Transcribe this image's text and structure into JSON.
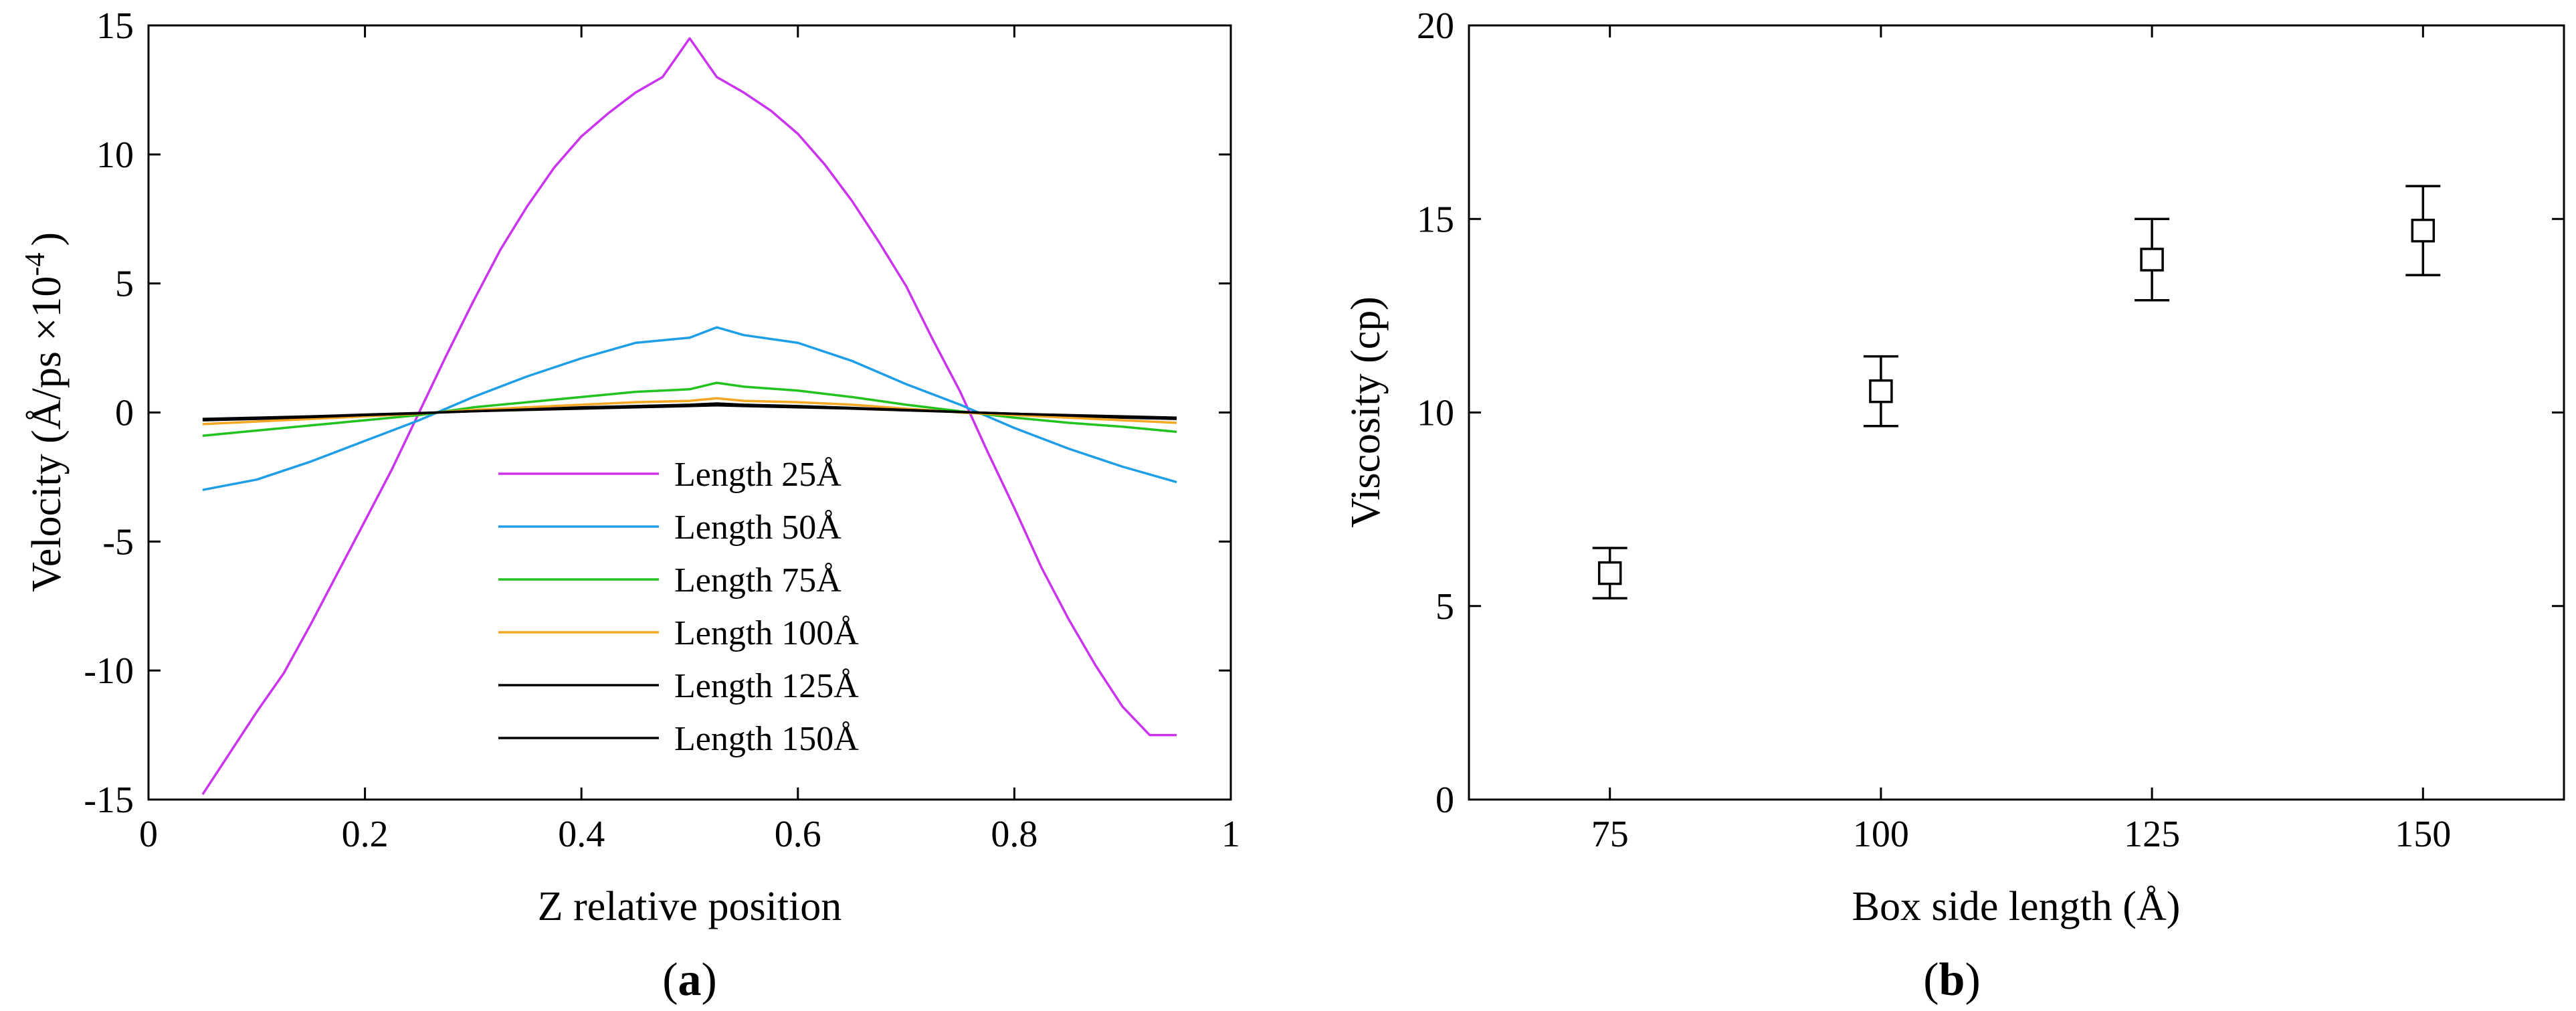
{
  "figure": {
    "panel_a_label": {
      "open": "(",
      "letter": "a",
      "close": ")"
    },
    "panel_b_label": {
      "open": "(",
      "letter": "b",
      "close": ")"
    }
  },
  "chart_data": [
    {
      "type": "line",
      "xlabel": "Z relative position",
      "ylabel": "Velocity (Å/ps ×10",
      "ylabel_exponent": "-4",
      "ylabel_close": ")",
      "xlim": [
        0,
        1
      ],
      "ylim": [
        -15,
        15
      ],
      "xticks": [
        0,
        0.2,
        0.4,
        0.6,
        0.8,
        1
      ],
      "xtick_labels": [
        "0",
        "0.2",
        "0.4",
        "0.6",
        "0.8",
        "1"
      ],
      "yticks": [
        -15,
        -10,
        -5,
        0,
        5,
        10,
        15
      ],
      "ytick_labels": [
        "-15",
        "-10",
        "-5",
        "0",
        "5",
        "10",
        "15"
      ],
      "legend_position": "lower-center",
      "series": [
        {
          "name": "Length 25Å",
          "color": "#cc33ee",
          "x": [
            0.05,
            0.075,
            0.1,
            0.125,
            0.15,
            0.175,
            0.2,
            0.225,
            0.25,
            0.275,
            0.3,
            0.325,
            0.35,
            0.375,
            0.4,
            0.425,
            0.45,
            0.475,
            0.5,
            0.525,
            0.55,
            0.575,
            0.6,
            0.625,
            0.65,
            0.675,
            0.7,
            0.725,
            0.75,
            0.775,
            0.8,
            0.825,
            0.85,
            0.875,
            0.9,
            0.925,
            0.95
          ],
          "y": [
            -14.8,
            -13.2,
            -11.6,
            -10.1,
            -8.2,
            -6.2,
            -4.2,
            -2.2,
            0.0,
            2.2,
            4.3,
            6.3,
            8.0,
            9.5,
            10.7,
            11.6,
            12.4,
            13.0,
            14.5,
            13.0,
            12.4,
            11.7,
            10.8,
            9.6,
            8.2,
            6.6,
            4.9,
            2.8,
            0.8,
            -1.5,
            -3.7,
            -6.0,
            -8.0,
            -9.8,
            -11.4,
            -12.5,
            -12.5
          ]
        },
        {
          "name": "Length 50Å",
          "color": "#1f9ee8",
          "x": [
            0.05,
            0.1,
            0.15,
            0.2,
            0.25,
            0.3,
            0.35,
            0.4,
            0.45,
            0.5,
            0.525,
            0.55,
            0.6,
            0.65,
            0.7,
            0.75,
            0.8,
            0.85,
            0.9,
            0.95
          ],
          "y": [
            -3.0,
            -2.6,
            -1.9,
            -1.1,
            -0.3,
            0.6,
            1.4,
            2.1,
            2.7,
            2.9,
            3.3,
            3.0,
            2.7,
            2.0,
            1.1,
            0.3,
            -0.6,
            -1.4,
            -2.1,
            -2.7
          ]
        },
        {
          "name": "Length 75Å",
          "color": "#22c21f",
          "x": [
            0.05,
            0.1,
            0.15,
            0.2,
            0.25,
            0.3,
            0.35,
            0.4,
            0.45,
            0.5,
            0.525,
            0.55,
            0.6,
            0.65,
            0.7,
            0.75,
            0.8,
            0.85,
            0.9,
            0.95
          ],
          "y": [
            -0.9,
            -0.7,
            -0.5,
            -0.3,
            -0.1,
            0.2,
            0.4,
            0.6,
            0.8,
            0.9,
            1.15,
            1.0,
            0.85,
            0.6,
            0.3,
            0.05,
            -0.2,
            -0.4,
            -0.55,
            -0.75
          ]
        },
        {
          "name": "Length 100Å",
          "color": "#f5a623",
          "x": [
            0.05,
            0.1,
            0.15,
            0.2,
            0.25,
            0.3,
            0.35,
            0.4,
            0.45,
            0.5,
            0.525,
            0.55,
            0.6,
            0.65,
            0.7,
            0.75,
            0.8,
            0.85,
            0.9,
            0.95
          ],
          "y": [
            -0.45,
            -0.35,
            -0.25,
            -0.15,
            -0.05,
            0.1,
            0.2,
            0.3,
            0.4,
            0.45,
            0.55,
            0.45,
            0.4,
            0.3,
            0.15,
            0.0,
            -0.1,
            -0.2,
            -0.3,
            -0.4
          ]
        },
        {
          "name": "Length 125Å",
          "color": "#000000",
          "x": [
            0.05,
            0.1,
            0.15,
            0.2,
            0.25,
            0.3,
            0.35,
            0.4,
            0.45,
            0.5,
            0.525,
            0.55,
            0.6,
            0.65,
            0.7,
            0.75,
            0.8,
            0.85,
            0.9,
            0.95
          ],
          "y": [
            -0.3,
            -0.25,
            -0.18,
            -0.1,
            -0.03,
            0.05,
            0.12,
            0.2,
            0.25,
            0.3,
            0.35,
            0.3,
            0.25,
            0.18,
            0.1,
            0.02,
            -0.05,
            -0.12,
            -0.2,
            -0.25
          ]
        },
        {
          "name": "Length 150Å",
          "color": "#000000",
          "x": [
            0.05,
            0.1,
            0.15,
            0.2,
            0.25,
            0.3,
            0.35,
            0.4,
            0.45,
            0.5,
            0.525,
            0.55,
            0.6,
            0.65,
            0.7,
            0.75,
            0.8,
            0.85,
            0.9,
            0.95
          ],
          "y": [
            -0.25,
            -0.2,
            -0.15,
            -0.08,
            -0.02,
            0.05,
            0.1,
            0.15,
            0.2,
            0.25,
            0.28,
            0.25,
            0.2,
            0.15,
            0.08,
            0.02,
            -0.05,
            -0.1,
            -0.15,
            -0.2
          ]
        }
      ]
    },
    {
      "type": "scatter",
      "xlabel": "Box side length (Å)",
      "ylabel": "Viscosity (cp)",
      "xlim": [
        62,
        163
      ],
      "ylim": [
        0,
        20
      ],
      "xticks": [
        75,
        100,
        125,
        150
      ],
      "xtick_labels": [
        "75",
        "100",
        "125",
        "150"
      ],
      "yticks": [
        0,
        5,
        10,
        15,
        20
      ],
      "ytick_labels": [
        "0",
        "5",
        "10",
        "15",
        "20"
      ],
      "marker": "open-square",
      "color": "#000000",
      "points": [
        {
          "x": 75,
          "y": 5.85,
          "err_low": 5.2,
          "err_high": 6.5
        },
        {
          "x": 100,
          "y": 10.55,
          "err_low": 9.65,
          "err_high": 11.45
        },
        {
          "x": 125,
          "y": 13.95,
          "err_low": 12.9,
          "err_high": 15.0
        },
        {
          "x": 150,
          "y": 14.7,
          "err_low": 13.55,
          "err_high": 15.85
        }
      ]
    }
  ]
}
